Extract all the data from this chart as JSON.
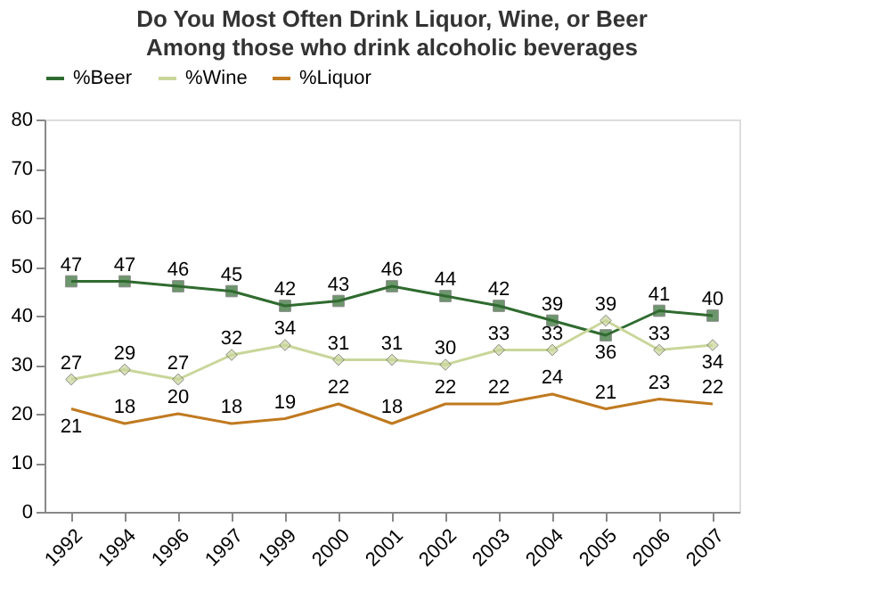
{
  "chart_data": {
    "type": "line",
    "title": "Do You Most Often Drink Liquor, Wine, or Beer",
    "subtitle": "Among those who drink alcoholic beverages",
    "categories": [
      "1992",
      "1994",
      "1996",
      "1997",
      "1999",
      "2000",
      "2001",
      "2002",
      "2003",
      "2004",
      "2005",
      "2006",
      "2007"
    ],
    "series": [
      {
        "name": "%Beer",
        "color": "#2f6b2f",
        "marker": "square",
        "values": [
          47,
          47,
          46,
          45,
          42,
          43,
          46,
          44,
          42,
          39,
          36,
          41,
          40
        ]
      },
      {
        "name": "%Wine",
        "color": "#c9d69a",
        "marker": "diamond",
        "values": [
          27,
          29,
          27,
          32,
          34,
          31,
          31,
          30,
          33,
          33,
          39,
          33,
          34
        ]
      },
      {
        "name": "%Liquor",
        "color": "#c07a20",
        "marker": "none",
        "values": [
          21,
          18,
          20,
          18,
          19,
          22,
          18,
          22,
          22,
          24,
          21,
          23,
          22
        ]
      }
    ],
    "ylim": [
      0,
      80
    ],
    "yticks": [
      0,
      10,
      20,
      30,
      40,
      50,
      60,
      70,
      80
    ],
    "grid": false,
    "legend": "top",
    "data_labels": true,
    "line_style": "solid"
  }
}
